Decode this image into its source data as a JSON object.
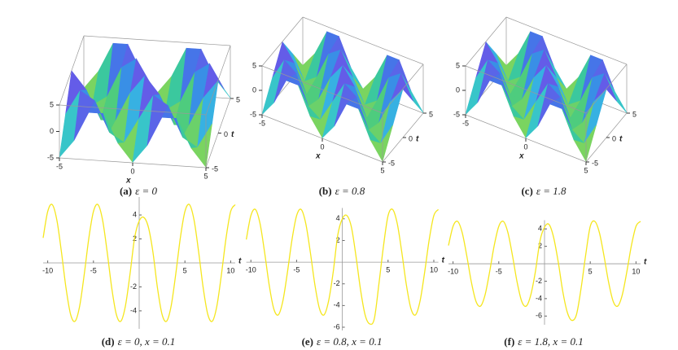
{
  "chart_data": [
    {
      "type": "surface",
      "label": "(a)",
      "caption": "ε = 0",
      "xlabel": "x",
      "tlabel": "t",
      "x": [
        -5,
        -4,
        -3,
        -2,
        -1,
        0,
        1,
        2,
        3,
        4,
        5
      ],
      "t": [
        -5,
        -2.5,
        0,
        2.5,
        5
      ],
      "z": [
        [
          -4.9,
          -1.51,
          3.96,
          3.96,
          -1.51,
          -4.9,
          -1.51,
          3.96,
          3.96,
          -1.51,
          -4.9
        ],
        [
          0,
          4.66,
          2.88,
          -2.88,
          -4.66,
          0,
          4.66,
          2.88,
          -2.88,
          -4.66,
          0
        ],
        [
          4.9,
          1.51,
          -3.96,
          -3.96,
          1.51,
          4.9,
          1.51,
          -3.96,
          -3.96,
          1.51,
          4.9
        ],
        [
          0,
          -4.66,
          -2.88,
          2.88,
          4.66,
          0,
          -4.66,
          -2.88,
          2.88,
          4.66,
          0
        ],
        [
          -4.9,
          -1.51,
          3.96,
          3.96,
          -1.51,
          -4.9,
          -1.51,
          3.96,
          3.96,
          -1.51,
          -4.9
        ]
      ],
      "xlim": [
        -5,
        5
      ],
      "tlim": [
        -5,
        5
      ],
      "zlim": [
        -5,
        5
      ],
      "xticks": [
        -5,
        0,
        5
      ],
      "tticks": [
        -5,
        0,
        5
      ],
      "zticks": [
        -5,
        0,
        5
      ],
      "colormap": [
        "#f5e61e",
        "#9ad94a",
        "#3cc98a",
        "#36c3e0",
        "#3a7fe8",
        "#7a4ae8",
        "#d94ae6"
      ]
    },
    {
      "type": "surface",
      "label": "(b)",
      "caption": "ε = 0.8",
      "xlabel": "x",
      "tlabel": "t",
      "x": [
        -5,
        -4,
        -3,
        -2,
        -1,
        0,
        1,
        2,
        3,
        4,
        5
      ],
      "t": [
        -5,
        -2.5,
        0,
        2.5,
        5
      ],
      "z": [
        [
          -4.9,
          -1.51,
          3.96,
          3.96,
          -1.51,
          -4.9,
          -1.51,
          3.96,
          3.96,
          -1.51,
          -4.9
        ],
        [
          0,
          4.66,
          2.88,
          -2.88,
          -4.66,
          0,
          4.66,
          2.88,
          -2.88,
          -4.66,
          0
        ],
        [
          4.9,
          1.51,
          -3.96,
          -3.96,
          1.51,
          4.9,
          1.51,
          -3.96,
          -3.96,
          1.51,
          4.9
        ],
        [
          0,
          -4.66,
          -2.88,
          2.88,
          4.66,
          0,
          -4.66,
          -2.88,
          2.88,
          4.66,
          0
        ],
        [
          -4.9,
          -1.51,
          3.96,
          3.96,
          -1.51,
          -4.9,
          -1.51,
          3.96,
          3.96,
          -1.51,
          -4.9
        ]
      ],
      "xlim": [
        -5,
        5
      ],
      "tlim": [
        -5,
        5
      ],
      "zlim": [
        -5,
        5
      ],
      "xticks": [
        -5,
        0,
        5
      ],
      "tticks": [
        -5,
        0,
        5
      ],
      "zticks": [
        -5,
        0,
        5
      ],
      "colormap": [
        "#f5e61e",
        "#9ad94a",
        "#3cc98a",
        "#36c3e0",
        "#3a7fe8",
        "#7a4ae8",
        "#d94ae6"
      ]
    },
    {
      "type": "surface",
      "label": "(c)",
      "caption": "ε = 1.8",
      "xlabel": "x",
      "tlabel": "t",
      "x": [
        -5,
        -4,
        -3,
        -2,
        -1,
        0,
        1,
        2,
        3,
        4,
        5
      ],
      "t": [
        -5,
        -2.5,
        0,
        2.5,
        5
      ],
      "z": [
        [
          -4.9,
          -1.51,
          3.96,
          3.96,
          -1.51,
          -4.9,
          -1.51,
          3.96,
          3.96,
          -1.51,
          -4.9
        ],
        [
          0,
          4.66,
          2.88,
          -2.88,
          -4.66,
          0,
          4.66,
          2.88,
          -2.88,
          -4.66,
          0
        ],
        [
          4.9,
          1.51,
          -3.96,
          -3.96,
          1.51,
          4.9,
          1.51,
          -3.96,
          -3.96,
          1.51,
          4.9
        ],
        [
          0,
          -4.66,
          -2.88,
          2.88,
          4.66,
          0,
          -4.66,
          -2.88,
          2.88,
          4.66,
          0
        ],
        [
          -4.9,
          -1.51,
          3.96,
          3.96,
          -1.51,
          -4.9,
          -1.51,
          3.96,
          3.96,
          -1.51,
          -4.9
        ]
      ],
      "xlim": [
        -5,
        5
      ],
      "tlim": [
        -5,
        5
      ],
      "zlim": [
        -5,
        5
      ],
      "xticks": [
        -5,
        0,
        5
      ],
      "tticks": [
        -5,
        0,
        5
      ],
      "zticks": [
        -5,
        0,
        5
      ],
      "colormap": [
        "#f5e61e",
        "#9ad94a",
        "#3cc98a",
        "#36c3e0",
        "#3a7fe8",
        "#7a4ae8",
        "#d94ae6"
      ]
    },
    {
      "type": "line",
      "label": "(d)",
      "caption": "ε = 0,  x = 0.1",
      "xlabel": "t",
      "x": [
        -10.5,
        -10,
        -9.5,
        -9,
        -8.5,
        -8,
        -7.5,
        -7,
        -6.5,
        -6,
        -5.5,
        -5,
        -4.5,
        -4,
        -3.5,
        -3,
        -2.5,
        -2,
        -1.5,
        -1,
        -0.5,
        0,
        0.5,
        1,
        1.5,
        2,
        2.5,
        3,
        3.5,
        4,
        4.5,
        5,
        5.5,
        6,
        6.5,
        7,
        7.5,
        8,
        8.5,
        9,
        9.5,
        10,
        10.5
      ],
      "values": [
        2.09,
        4.29,
        4.86,
        3.57,
        0.92,
        -2.09,
        -4.29,
        -4.86,
        -3.57,
        -0.92,
        2.09,
        4.29,
        4.86,
        3.57,
        0.92,
        -2.09,
        -4.29,
        -4.86,
        -3.57,
        -0.92,
        2.09,
        3.5,
        3.8,
        3.0,
        0.92,
        -2.09,
        -4.29,
        -4.86,
        -3.57,
        -0.92,
        2.09,
        4.29,
        4.86,
        3.57,
        0.92,
        -2.09,
        -4.29,
        -4.86,
        -3.57,
        -0.92,
        2.09,
        4.29,
        4.86
      ],
      "xlim": [
        -10.5,
        10.5
      ],
      "ylim": [
        -5.5,
        5.5
      ],
      "xticks": [
        -10,
        -5,
        5,
        10
      ],
      "yticks": [
        -4,
        -2,
        2,
        4
      ],
      "colormap": [
        "#f5e61e",
        "#9ad94a",
        "#3cc98a",
        "#36c3e0",
        "#3a7fe8",
        "#7a4ae8",
        "#d94ae6"
      ]
    },
    {
      "type": "line",
      "label": "(e)",
      "caption": "ε = 0.8,  x = 0.1",
      "xlabel": "t",
      "x": [
        -10.5,
        -10,
        -9.5,
        -9,
        -8.5,
        -8,
        -7.5,
        -7,
        -6.5,
        -6,
        -5.5,
        -5,
        -4.5,
        -4,
        -3.5,
        -3,
        -2.5,
        -2,
        -1.5,
        -1,
        -0.5,
        0,
        0.5,
        1,
        1.5,
        2,
        2.5,
        3,
        3.5,
        4,
        4.5,
        5,
        5.5,
        6,
        6.5,
        7,
        7.5,
        8,
        8.5,
        9,
        9.5,
        10,
        10.5
      ],
      "values": [
        2.09,
        4.29,
        4.86,
        3.57,
        0.92,
        -2.09,
        -4.29,
        -4.86,
        -3.57,
        -0.92,
        2.09,
        4.29,
        4.86,
        3.57,
        0.92,
        -2.09,
        -4.29,
        -4.86,
        -3.57,
        -0.92,
        2.5,
        4.0,
        4.3,
        3.2,
        0.5,
        -2.6,
        -4.9,
        -5.7,
        -5.2,
        -2.0,
        1.5,
        4.29,
        4.86,
        3.57,
        0.92,
        -2.09,
        -4.29,
        -4.86,
        -3.57,
        -0.92,
        2.09,
        4.29,
        4.86
      ],
      "xlim": [
        -10.5,
        10.5
      ],
      "ylim": [
        -6.3,
        5
      ],
      "xticks": [
        -10,
        -5,
        5,
        10
      ],
      "yticks": [
        -6,
        -4,
        -2,
        2,
        4
      ],
      "colormap": [
        "#f5e61e",
        "#9ad94a",
        "#3cc98a",
        "#36c3e0",
        "#3a7fe8",
        "#7a4ae8",
        "#d94ae6"
      ]
    },
    {
      "type": "line",
      "label": "(f)",
      "caption": "ε = 1.8,  x = 0.1",
      "xlabel": "t",
      "x": [
        -10.5,
        -10,
        -9.5,
        -9,
        -8.5,
        -8,
        -7.5,
        -7,
        -6.5,
        -6,
        -5.5,
        -5,
        -4.5,
        -4,
        -3.5,
        -3,
        -2.5,
        -2,
        -1.5,
        -1,
        -0.5,
        0,
        0.5,
        1,
        1.5,
        2,
        2.5,
        3,
        3.5,
        4,
        4.5,
        5,
        5.5,
        6,
        6.5,
        7,
        7.5,
        8,
        8.5,
        9,
        9.5,
        10,
        10.5
      ],
      "values": [
        2.09,
        4.29,
        4.86,
        3.57,
        0.92,
        -2.09,
        -4.29,
        -4.86,
        -3.57,
        -0.92,
        2.09,
        4.29,
        4.86,
        3.57,
        0.92,
        -2.09,
        -4.29,
        -4.86,
        -3.57,
        -0.92,
        2.6,
        4.2,
        4.5,
        3.0,
        0.2,
        -3.2,
        -5.6,
        -6.5,
        -5.8,
        -2.8,
        1.0,
        4.29,
        4.86,
        3.57,
        0.92,
        -2.09,
        -4.29,
        -4.86,
        -3.57,
        -0.92,
        2.09,
        4.29,
        4.86
      ],
      "xlim": [
        -10.5,
        10.5
      ],
      "ylim": [
        -7,
        5
      ],
      "xticks": [
        -10,
        -5,
        5,
        10
      ],
      "yticks": [
        -6,
        -4,
        -2,
        2,
        4
      ],
      "colormap": [
        "#f5e61e",
        "#9ad94a",
        "#3cc98a",
        "#36c3e0",
        "#3a7fe8",
        "#7a4ae8",
        "#d94ae6"
      ]
    }
  ]
}
